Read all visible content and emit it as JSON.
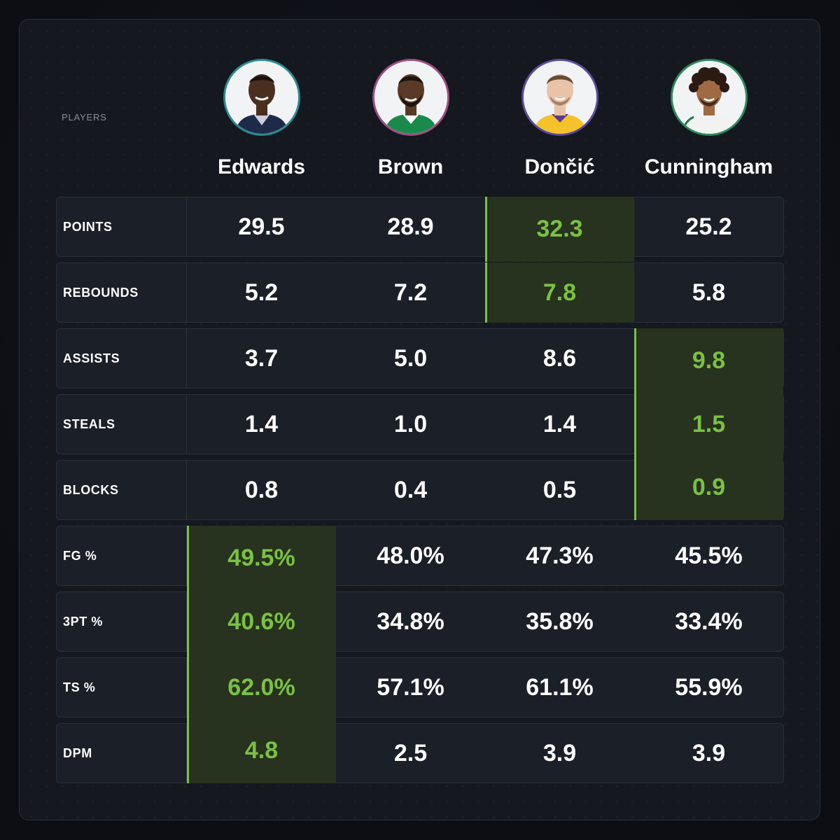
{
  "header": {
    "players_label": "PLAYERS"
  },
  "players": [
    {
      "name": "Edwards",
      "ring_color": "#2a8a8f",
      "jersey_color": "#1e2a4a",
      "skin": "#4a2e20"
    },
    {
      "name": "Brown",
      "ring_color": "#9b4f82",
      "jersey_color": "#1a8a4a",
      "skin": "#5a3a27"
    },
    {
      "name": "Dončić",
      "ring_color": "#5b4a9e",
      "jersey_color": "#f4c22b",
      "skin": "#e9c3a7"
    },
    {
      "name": "Cunningham",
      "ring_color": "#2f8a5e",
      "jersey_color": "#f1f3f2",
      "skin": "#a06a45"
    }
  ],
  "stats": [
    {
      "label": "POINTS",
      "values": [
        "29.5",
        "28.9",
        "32.3",
        "25.2"
      ],
      "best": 2
    },
    {
      "label": "REBOUNDS",
      "values": [
        "5.2",
        "7.2",
        "7.8",
        "5.8"
      ],
      "best": 2
    },
    {
      "label": "ASSISTS",
      "values": [
        "3.7",
        "5.0",
        "8.6",
        "9.8"
      ],
      "best": 3
    },
    {
      "label": "STEALS",
      "values": [
        "1.4",
        "1.0",
        "1.4",
        "1.5"
      ],
      "best": 3
    },
    {
      "label": "BLOCKS",
      "values": [
        "0.8",
        "0.4",
        "0.5",
        "0.9"
      ],
      "best": 3
    },
    {
      "label": "FG %",
      "values": [
        "49.5%",
        "48.0%",
        "47.3%",
        "45.5%"
      ],
      "best": 0
    },
    {
      "label": "3PT %",
      "values": [
        "40.6%",
        "34.8%",
        "35.8%",
        "33.4%"
      ],
      "best": 0
    },
    {
      "label": "TS %",
      "values": [
        "62.0%",
        "57.1%",
        "61.1%",
        "55.9%"
      ],
      "best": 0
    },
    {
      "label": "DPM",
      "values": [
        "4.8",
        "2.5",
        "3.9",
        "3.9"
      ],
      "best": 0
    }
  ],
  "colors": {
    "highlight_text": "#7ac143",
    "highlight_bg": "#27321f",
    "row_bg": "#1b1f28"
  }
}
